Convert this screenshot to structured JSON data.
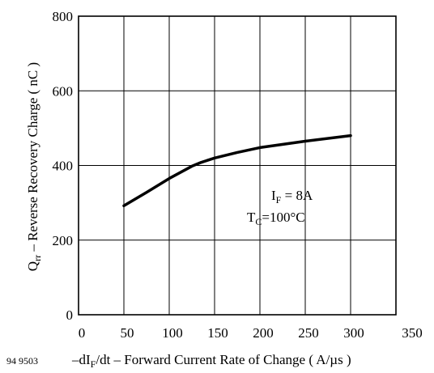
{
  "chart_data": {
    "type": "line",
    "figure_id": "94 9503",
    "xlabel": {
      "prefix": "–dI",
      "sub": "F",
      "rest": "/dt – Forward Current Rate of Change ( A/µs )"
    },
    "ylabel": {
      "main": "Q",
      "sub": "rr",
      "rest": " – Reverse Recovery Charge ( nC )"
    },
    "xlim": [
      0,
      350
    ],
    "ylim": [
      0,
      800
    ],
    "x_ticks": [
      0,
      50,
      100,
      150,
      200,
      250,
      300,
      350
    ],
    "y_ticks": [
      0,
      200,
      400,
      600,
      800
    ],
    "grid": true,
    "series": [
      {
        "x": [
          50,
          75,
          100,
          125,
          135,
          150,
          175,
          200,
          250,
          300
        ],
        "y": [
          292,
          328,
          365,
          398,
          408,
          420,
          435,
          448,
          465,
          480
        ]
      }
    ],
    "annotations": [
      {
        "main": "I",
        "sub": "F",
        "rest": " = 8A"
      },
      {
        "main": "T",
        "sub": "C",
        "rest": "=100°C"
      }
    ]
  }
}
